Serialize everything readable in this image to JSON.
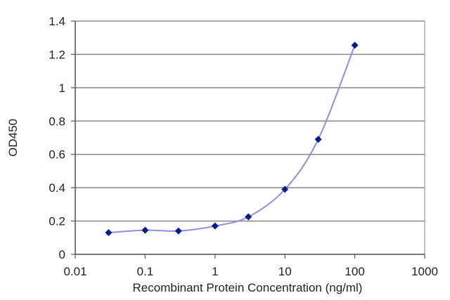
{
  "chart_data": {
    "type": "line",
    "title": "",
    "xlabel": "Recombinant Protein Concentration (ng/ml)",
    "ylabel": "OD450",
    "x_scale": "log",
    "xlim": [
      0.01,
      1000
    ],
    "ylim": [
      0,
      1.4
    ],
    "grid": {
      "horizontal": true,
      "vertical": false
    },
    "x_ticks": [
      "0.01",
      "0.1",
      "1",
      "10",
      "100",
      "1000"
    ],
    "y_ticks": [
      "0",
      "0.2",
      "0.4",
      "0.6",
      "0.8",
      "1",
      "1.2",
      "1.4"
    ],
    "series": [
      {
        "x": [
          0.03,
          0.1,
          0.3,
          1,
          3,
          10,
          30,
          100
        ],
        "y": [
          0.13,
          0.145,
          0.14,
          0.17,
          0.225,
          0.39,
          0.69,
          1.255
        ]
      }
    ],
    "colors": {
      "line": "#8c8fe0",
      "marker": "#0a1a8c",
      "grid": "#888888",
      "axis": "#555555"
    }
  }
}
